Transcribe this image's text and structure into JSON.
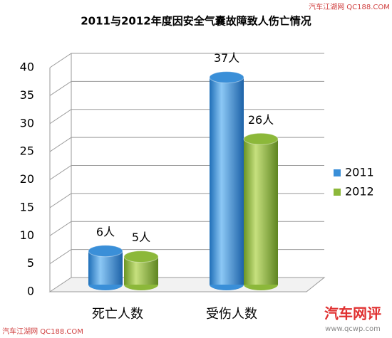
{
  "chart_data": {
    "type": "bar",
    "title": "2011与2012年度因安全气囊故障致人伤亡情况",
    "categories": [
      "死亡人数",
      "受伤人数"
    ],
    "series": [
      {
        "name": "2011",
        "color": "#3a8fd8",
        "values": [
          6,
          37
        ],
        "value_labels": [
          "6人",
          "37人"
        ]
      },
      {
        "name": "2012",
        "color": "#8cb83a",
        "values": [
          5,
          26
        ],
        "value_labels": [
          "5人",
          "26人"
        ]
      }
    ],
    "ylim": [
      0,
      40
    ],
    "yticks": [
      0,
      5,
      10,
      15,
      20,
      25,
      30,
      35,
      40
    ],
    "grid": true,
    "legend": "right"
  },
  "watermarks": [
    "汽车江湖网 QC188.COM",
    "汽车江湖网 QC188.COM",
    "汽车网评",
    "www.qcwp.com"
  ]
}
